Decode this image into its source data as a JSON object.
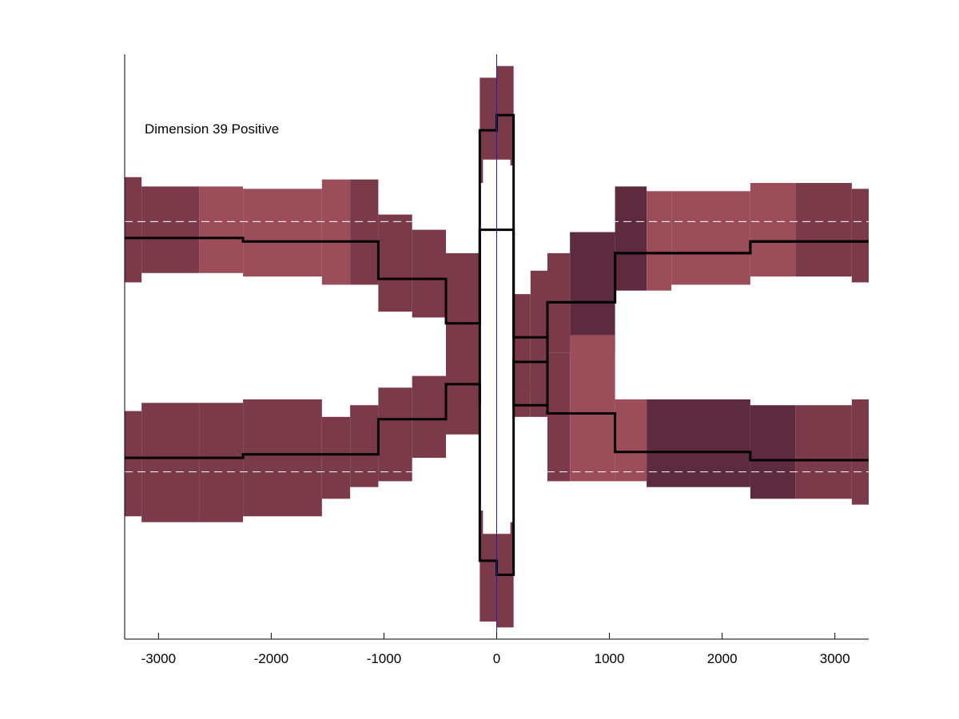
{
  "chart_data": {
    "type": "step-band",
    "title": "",
    "xlabel": "",
    "ylabel": "",
    "annotation": "Dimension 39 Positive",
    "xlim": [
      -3300,
      3300
    ],
    "ylim": [
      -2.5,
      2.5
    ],
    "xticks": [
      -3000,
      -2000,
      -1000,
      0,
      1000,
      2000,
      3000
    ],
    "yticks": [],
    "grid": false,
    "legend": "none",
    "reference_lines": {
      "vertical_x": 0,
      "vertical_color": "#2020a0",
      "horizontal_dashed_y": [
        1.07,
        -1.07
      ],
      "dashed_color": "#ffffff"
    },
    "colors": {
      "band_medium": "#7a3a4a",
      "band_light": "#9c4d5a",
      "band_dark": "#5e2a3d",
      "line": "#000000"
    },
    "bands": [
      {
        "x0": -3300,
        "x1": -3150,
        "lo": 0.55,
        "hi": 1.45,
        "tone": "medium"
      },
      {
        "x0": -3150,
        "x1": -2640,
        "lo": 0.63,
        "hi": 1.37,
        "tone": "medium"
      },
      {
        "x0": -2640,
        "x1": -2250,
        "lo": 0.63,
        "hi": 1.37,
        "tone": "light"
      },
      {
        "x0": -2250,
        "x1": -1550,
        "lo": 0.6,
        "hi": 1.35,
        "tone": "light"
      },
      {
        "x0": -1550,
        "x1": -1300,
        "lo": 0.53,
        "hi": 1.43,
        "tone": "light"
      },
      {
        "x0": -1300,
        "x1": -1050,
        "lo": 0.53,
        "hi": 1.43,
        "tone": "medium"
      },
      {
        "x0": -1050,
        "x1": -750,
        "lo": 0.3,
        "hi": 1.13,
        "tone": "medium"
      },
      {
        "x0": -750,
        "x1": -450,
        "lo": 0.25,
        "hi": 1.0,
        "tone": "medium"
      },
      {
        "x0": -450,
        "x1": -150,
        "lo": -0.2,
        "hi": 0.8,
        "tone": "medium"
      },
      {
        "x0": -150,
        "x1": 0,
        "lo": 1.4,
        "hi": 2.3,
        "tone": "medium"
      },
      {
        "x0": 0,
        "x1": 150,
        "lo": 1.55,
        "hi": 2.4,
        "tone": "medium"
      },
      {
        "x0": 150,
        "x1": 300,
        "lo": -0.4,
        "hi": 0.45,
        "tone": "medium"
      },
      {
        "x0": 300,
        "x1": 450,
        "lo": -0.3,
        "hi": 0.65,
        "tone": "medium"
      },
      {
        "x0": 450,
        "x1": 650,
        "lo": -0.05,
        "hi": 0.8,
        "tone": "medium"
      },
      {
        "x0": 650,
        "x1": 1050,
        "lo": -0.05,
        "hi": 0.98,
        "tone": "dark"
      },
      {
        "x0": 1050,
        "x1": 1330,
        "lo": 0.48,
        "hi": 1.37,
        "tone": "dark"
      },
      {
        "x0": 1330,
        "x1": 1550,
        "lo": 0.48,
        "hi": 1.33,
        "tone": "light"
      },
      {
        "x0": 1550,
        "x1": 2250,
        "lo": 0.53,
        "hi": 1.33,
        "tone": "light"
      },
      {
        "x0": 2250,
        "x1": 2650,
        "lo": 0.6,
        "hi": 1.4,
        "tone": "light"
      },
      {
        "x0": 2650,
        "x1": 3150,
        "lo": 0.6,
        "hi": 1.4,
        "tone": "medium"
      },
      {
        "x0": 3150,
        "x1": 3300,
        "lo": 0.55,
        "hi": 1.35,
        "tone": "medium"
      },
      {
        "x0": -3300,
        "x1": -3150,
        "lo": -1.45,
        "hi": -0.55,
        "tone": "medium"
      },
      {
        "x0": -3150,
        "x1": -2640,
        "lo": -1.5,
        "hi": -0.48,
        "tone": "medium"
      },
      {
        "x0": -2640,
        "x1": -2250,
        "lo": -1.5,
        "hi": -0.48,
        "tone": "medium"
      },
      {
        "x0": -2250,
        "x1": -1550,
        "lo": -1.45,
        "hi": -0.45,
        "tone": "medium"
      },
      {
        "x0": -1550,
        "x1": -1300,
        "lo": -1.3,
        "hi": -0.6,
        "tone": "medium"
      },
      {
        "x0": -1300,
        "x1": -1050,
        "lo": -1.2,
        "hi": -0.5,
        "tone": "medium"
      },
      {
        "x0": -1050,
        "x1": -750,
        "lo": -1.15,
        "hi": -0.35,
        "tone": "medium"
      },
      {
        "x0": -750,
        "x1": -450,
        "lo": -0.95,
        "hi": -0.25,
        "tone": "medium"
      },
      {
        "x0": -450,
        "x1": -150,
        "lo": -0.75,
        "hi": 0.25,
        "tone": "medium"
      },
      {
        "x0": -150,
        "x1": 0,
        "lo": -2.35,
        "hi": -1.4,
        "tone": "medium"
      },
      {
        "x0": 0,
        "x1": 150,
        "lo": -2.4,
        "hi": -1.5,
        "tone": "medium"
      },
      {
        "x0": 150,
        "x1": 300,
        "lo": -0.6,
        "hi": -0.3,
        "tone": "medium"
      },
      {
        "x0": 300,
        "x1": 450,
        "lo": -0.6,
        "hi": -0.25,
        "tone": "medium"
      },
      {
        "x0": 450,
        "x1": 650,
        "lo": -1.15,
        "hi": -0.05,
        "tone": "medium"
      },
      {
        "x0": 650,
        "x1": 1050,
        "lo": -1.15,
        "hi": 0.1,
        "tone": "light"
      },
      {
        "x0": 1050,
        "x1": 1330,
        "lo": -1.15,
        "hi": -0.45,
        "tone": "light"
      },
      {
        "x0": 1330,
        "x1": 2250,
        "lo": -1.2,
        "hi": -0.45,
        "tone": "dark"
      },
      {
        "x0": 2250,
        "x1": 2650,
        "lo": -1.3,
        "hi": -0.5,
        "tone": "dark"
      },
      {
        "x0": 2650,
        "x1": 3150,
        "lo": -1.3,
        "hi": -0.5,
        "tone": "medium"
      },
      {
        "x0": 3150,
        "x1": 3300,
        "lo": -1.35,
        "hi": -0.45,
        "tone": "medium"
      }
    ],
    "series": [
      {
        "x": [
          -3300,
          -2250,
          -2250,
          -1050,
          -1050,
          -450,
          -450,
          -150,
          -150,
          0,
          0,
          150,
          150,
          450,
          450,
          1050,
          1050,
          2250,
          2250,
          3300
        ],
        "y": [
          0.93,
          0.93,
          0.9,
          0.9,
          0.58,
          0.58,
          0.2,
          0.2,
          1.85,
          1.85,
          1.98,
          1.98,
          0.08,
          0.08,
          0.38,
          0.38,
          0.8,
          0.8,
          0.9,
          0.9
        ]
      },
      {
        "x": [
          -3300,
          -2250,
          -2250,
          -1050,
          -1050,
          -450,
          -450,
          -150,
          -150,
          0,
          0,
          150,
          150,
          450,
          450,
          1050,
          1050,
          2250,
          2250,
          3300
        ],
        "y": [
          -0.95,
          -0.95,
          -0.92,
          -0.92,
          -0.62,
          -0.62,
          -0.32,
          -0.32,
          -1.83,
          -1.83,
          -1.95,
          -1.95,
          -0.13,
          -0.13,
          -0.57,
          -0.57,
          -0.9,
          -0.9,
          -0.97,
          -0.97
        ]
      },
      {
        "x": [
          -3300,
          -3300
        ],
        "y": [
          0,
          0
        ]
      }
    ],
    "inner_curves": [
      {
        "x": [
          -150,
          -150,
          150,
          150,
          450,
          450,
          1050,
          1050,
          2250,
          2250,
          3300
        ],
        "y": [
          -0.5,
          1.0,
          1.0,
          -0.5,
          -0.5,
          0.38,
          0.38,
          0.8,
          0.8,
          0.9,
          0.9
        ]
      }
    ]
  }
}
